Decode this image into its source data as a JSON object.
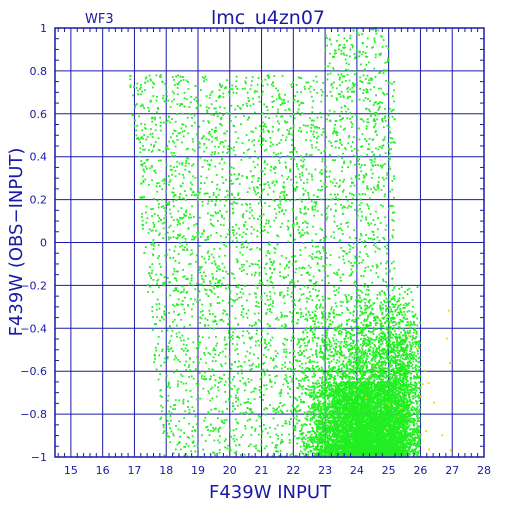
{
  "chart_data": {
    "type": "scatter",
    "title": "lmc_u4zn07",
    "panel_label": "WF3",
    "xlabel": "F439W INPUT",
    "ylabel": "F439W (OBS−INPUT)",
    "xlim": [
      14.5,
      28
    ],
    "ylim": [
      -1,
      1
    ],
    "x_ticks": [
      15,
      16,
      17,
      18,
      19,
      20,
      21,
      22,
      23,
      24,
      25,
      26,
      27,
      28
    ],
    "y_ticks": [
      -1,
      -0.8,
      -0.6,
      -0.4,
      -0.2,
      0,
      0.2,
      0.4,
      0.6,
      0.8,
      1
    ],
    "y_tick_labels": [
      "−1",
      "−0.8",
      "−0.6",
      "−0.4",
      "−0.2",
      "0",
      "0.2",
      "0.4",
      "0.6",
      "0.8",
      "1"
    ],
    "grid": true,
    "series": [
      {
        "color": "#22ee22",
        "regions": [
          {
            "x": [
              16.8,
              25.8
            ],
            "y": [
              -1.0,
              0.78
            ],
            "density": "uniform",
            "count": 4200
          },
          {
            "x": [
              21.8,
              26.0
            ],
            "y": [
              -1.0,
              -0.2
            ],
            "density": "increasing-faint",
            "count": 5200
          },
          {
            "x": [
              22.5,
              25.8
            ],
            "y": [
              -1.0,
              -0.65
            ],
            "density": "dense-core",
            "count": 3800
          },
          {
            "x": [
              23.0,
              25.0
            ],
            "y": [
              0.78,
              1.0
            ],
            "density": "sparse",
            "count": 120
          }
        ]
      },
      {
        "color": "#ffcc00",
        "regions": [
          {
            "x": [
              24.0,
              27.0
            ],
            "y": [
              -1.0,
              -0.3
            ],
            "density": "sparse",
            "count": 22
          }
        ]
      }
    ]
  },
  "colors": {
    "axis": "#1a1aa6",
    "grid": "#1a1aa6",
    "points_primary": "#22ee22",
    "points_secondary": "#ffcc00",
    "background": "#ffffff"
  }
}
